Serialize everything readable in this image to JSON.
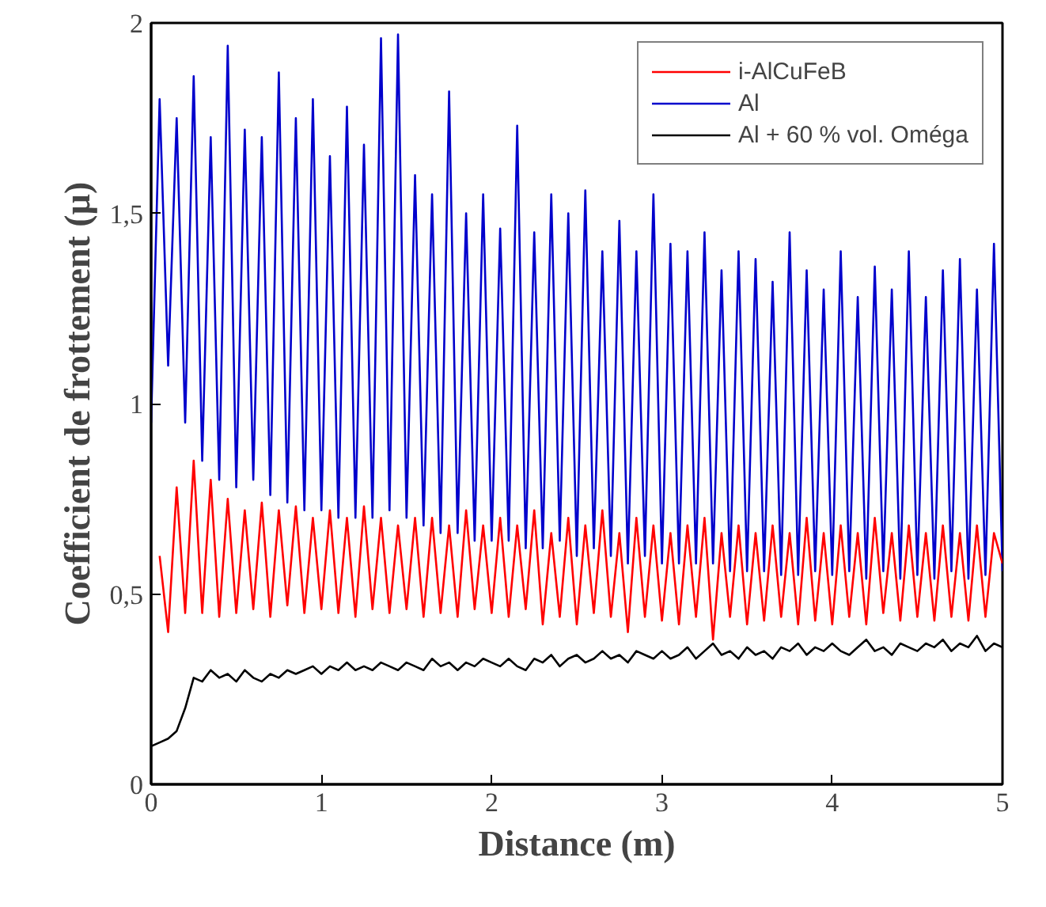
{
  "chart_data": {
    "type": "line",
    "xlabel": "Distance (m)",
    "ylabel": "Coefficient de frottement (µ)",
    "x": [
      0,
      0.05,
      0.1,
      0.15,
      0.2,
      0.25,
      0.3,
      0.35,
      0.4,
      0.45,
      0.5,
      0.55,
      0.6,
      0.65,
      0.7,
      0.75,
      0.8,
      0.85,
      0.9,
      0.95,
      1,
      1.05,
      1.1,
      1.15,
      1.2,
      1.25,
      1.3,
      1.35,
      1.4,
      1.45,
      1.5,
      1.55,
      1.6,
      1.65,
      1.7,
      1.75,
      1.8,
      1.85,
      1.9,
      1.95,
      2,
      2.05,
      2.1,
      2.15,
      2.2,
      2.25,
      2.3,
      2.35,
      2.4,
      2.45,
      2.5,
      2.55,
      2.6,
      2.65,
      2.7,
      2.75,
      2.8,
      2.85,
      2.9,
      2.95,
      3,
      3.05,
      3.1,
      3.15,
      3.2,
      3.25,
      3.3,
      3.35,
      3.4,
      3.45,
      3.5,
      3.55,
      3.6,
      3.65,
      3.7,
      3.75,
      3.8,
      3.85,
      3.9,
      3.95,
      4,
      4.05,
      4.1,
      4.15,
      4.2,
      4.25,
      4.3,
      4.35,
      4.4,
      4.45,
      4.5,
      4.55,
      4.6,
      4.65,
      4.7,
      4.75,
      4.8,
      4.85,
      4.9,
      4.95,
      5
    ],
    "series": [
      {
        "name": "i-AlCuFeB",
        "color": "#ff0000",
        "values": [
          null,
          0.6,
          0.4,
          0.78,
          0.45,
          0.85,
          0.45,
          0.8,
          0.44,
          0.75,
          0.45,
          0.72,
          0.46,
          0.74,
          0.44,
          0.72,
          0.47,
          0.73,
          0.45,
          0.7,
          0.46,
          0.72,
          0.45,
          0.7,
          0.44,
          0.73,
          0.46,
          0.7,
          0.45,
          0.68,
          0.46,
          0.7,
          0.44,
          0.7,
          0.45,
          0.68,
          0.44,
          0.72,
          0.46,
          0.68,
          0.45,
          0.7,
          0.44,
          0.68,
          0.46,
          0.72,
          0.42,
          0.66,
          0.44,
          0.7,
          0.42,
          0.68,
          0.45,
          0.72,
          0.44,
          0.66,
          0.4,
          0.7,
          0.44,
          0.68,
          0.43,
          0.66,
          0.42,
          0.68,
          0.44,
          0.7,
          0.38,
          0.66,
          0.44,
          0.68,
          0.42,
          0.66,
          0.43,
          0.68,
          0.44,
          0.66,
          0.42,
          0.7,
          0.43,
          0.66,
          0.42,
          0.68,
          0.44,
          0.66,
          0.42,
          0.7,
          0.45,
          0.66,
          0.43,
          0.68,
          0.44,
          0.66,
          0.43,
          0.68,
          0.44,
          0.66,
          0.43,
          0.68,
          0.44,
          0.66,
          0.58
        ]
      },
      {
        "name": "Al",
        "color": "#0000cc",
        "values": [
          0.95,
          1.8,
          1.1,
          1.75,
          0.95,
          1.86,
          0.85,
          1.7,
          0.8,
          1.94,
          0.78,
          1.72,
          0.8,
          1.7,
          0.76,
          1.87,
          0.74,
          1.75,
          0.72,
          1.8,
          0.72,
          1.65,
          0.7,
          1.78,
          0.7,
          1.68,
          0.7,
          1.96,
          0.72,
          1.97,
          0.7,
          1.6,
          0.68,
          1.55,
          0.66,
          1.82,
          0.66,
          1.5,
          0.64,
          1.55,
          0.64,
          1.46,
          0.64,
          1.73,
          0.62,
          1.45,
          0.62,
          1.55,
          0.64,
          1.5,
          0.6,
          1.56,
          0.62,
          1.4,
          0.6,
          1.48,
          0.58,
          1.4,
          0.6,
          1.55,
          0.58,
          1.42,
          0.58,
          1.4,
          0.58,
          1.45,
          0.58,
          1.35,
          0.56,
          1.4,
          0.56,
          1.38,
          0.56,
          1.32,
          0.55,
          1.45,
          0.55,
          1.35,
          0.56,
          1.3,
          0.55,
          1.4,
          0.56,
          1.28,
          0.54,
          1.36,
          0.56,
          1.3,
          0.54,
          1.4,
          0.55,
          1.28,
          0.54,
          1.35,
          0.56,
          1.38,
          0.54,
          1.3,
          0.55,
          1.42,
          0.56
        ]
      },
      {
        "name": "Al + 60 % vol. Oméga",
        "color": "#000000",
        "values": [
          0.1,
          0.11,
          0.12,
          0.14,
          0.2,
          0.28,
          0.27,
          0.3,
          0.28,
          0.29,
          0.27,
          0.3,
          0.28,
          0.27,
          0.29,
          0.28,
          0.3,
          0.29,
          0.3,
          0.31,
          0.29,
          0.31,
          0.3,
          0.32,
          0.3,
          0.31,
          0.3,
          0.32,
          0.31,
          0.3,
          0.32,
          0.31,
          0.3,
          0.33,
          0.31,
          0.32,
          0.3,
          0.32,
          0.31,
          0.33,
          0.32,
          0.31,
          0.33,
          0.31,
          0.3,
          0.33,
          0.32,
          0.34,
          0.31,
          0.33,
          0.34,
          0.32,
          0.33,
          0.35,
          0.33,
          0.34,
          0.32,
          0.35,
          0.34,
          0.33,
          0.35,
          0.33,
          0.34,
          0.36,
          0.33,
          0.35,
          0.37,
          0.34,
          0.35,
          0.33,
          0.36,
          0.34,
          0.35,
          0.33,
          0.36,
          0.35,
          0.37,
          0.34,
          0.36,
          0.35,
          0.37,
          0.35,
          0.34,
          0.36,
          0.38,
          0.35,
          0.36,
          0.34,
          0.37,
          0.36,
          0.35,
          0.37,
          0.36,
          0.38,
          0.35,
          0.37,
          0.36,
          0.39,
          0.35,
          0.37,
          0.36
        ]
      }
    ],
    "xlim": [
      0,
      5
    ],
    "ylim": [
      0,
      2
    ],
    "xticks": [
      0,
      1,
      2,
      3,
      4,
      5
    ],
    "yticks": [
      0,
      {
        "value": 0.5,
        "label": "0,5"
      },
      1,
      {
        "value": 1.5,
        "label": "1,5"
      },
      2
    ],
    "legend": "top right",
    "grid": false
  }
}
